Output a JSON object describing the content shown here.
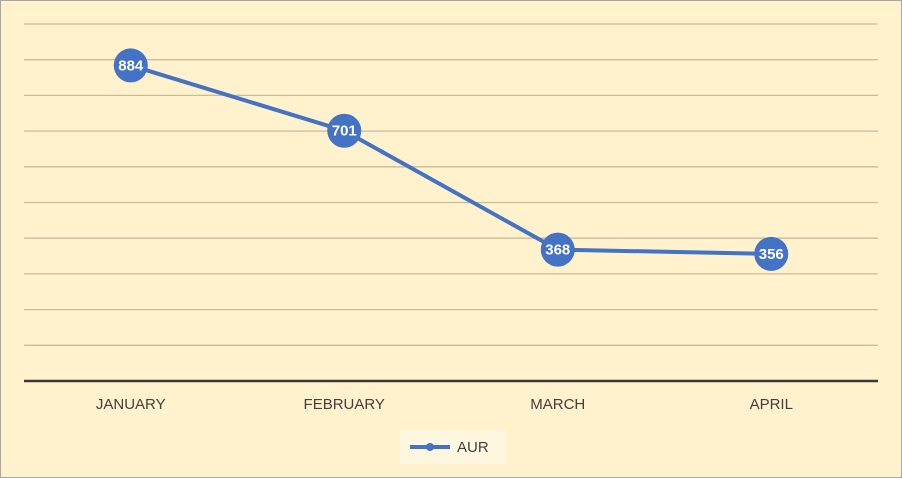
{
  "chart_data": {
    "type": "line",
    "categories": [
      "JANUARY",
      "FEBRUARY",
      "MARCH",
      "APRIL"
    ],
    "series": [
      {
        "name": "AUR",
        "color": "#4472c4",
        "values": [
          884,
          701,
          368,
          356
        ]
      }
    ],
    "ylim": [
      0,
      1000
    ],
    "yticks": [
      0,
      100,
      200,
      300,
      400,
      500,
      600,
      700,
      800,
      900,
      1000
    ],
    "grid": true,
    "legend": "bottom"
  }
}
